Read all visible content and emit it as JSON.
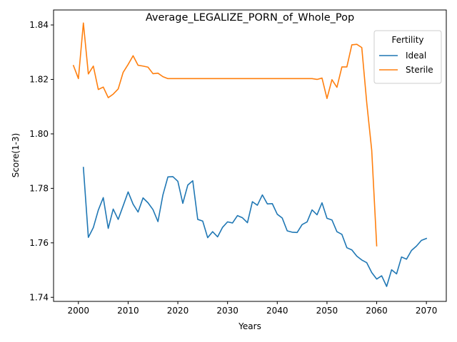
{
  "chart_data": {
    "type": "line",
    "title": "Average_LEGALIZE_PORN_of_Whole_Pop",
    "xlabel": "Years",
    "ylabel": "Score(1-3)",
    "xlim": [
      1995,
      2074
    ],
    "ylim": [
      1.7385,
      1.8455
    ],
    "xticks": [
      2000,
      2010,
      2020,
      2030,
      2040,
      2050,
      2060,
      2070
    ],
    "yticks": [
      1.74,
      1.76,
      1.78,
      1.8,
      1.82,
      1.84
    ],
    "ytick_labels": [
      "1.74",
      "1.76",
      "1.78",
      "1.80",
      "1.82",
      "1.84"
    ],
    "grid": false,
    "legend": {
      "title": "Fertility",
      "position": "top-right"
    },
    "series": [
      {
        "name": "Ideal",
        "color": "#1f77b4",
        "x": [
          2001,
          2002,
          2003,
          2004,
          2005,
          2006,
          2007,
          2008,
          2009,
          2010,
          2011,
          2012,
          2013,
          2014,
          2015,
          2016,
          2017,
          2018,
          2019,
          2020,
          2021,
          2022,
          2023,
          2024,
          2025,
          2026,
          2027,
          2028,
          2029,
          2030,
          2031,
          2032,
          2033,
          2034,
          2035,
          2036,
          2037,
          2038,
          2039,
          2040,
          2041,
          2042,
          2043,
          2044,
          2045,
          2046,
          2047,
          2048,
          2049,
          2050,
          2051,
          2052,
          2053,
          2054,
          2055,
          2056,
          2057,
          2058,
          2059,
          2060,
          2061,
          2062,
          2063,
          2064,
          2065,
          2066,
          2067,
          2068,
          2069,
          2070
        ],
        "y": [
          1.7877,
          1.762,
          1.7656,
          1.772,
          1.7766,
          1.7653,
          1.7724,
          1.7686,
          1.7736,
          1.7787,
          1.7742,
          1.7713,
          1.7765,
          1.7747,
          1.7722,
          1.7678,
          1.7776,
          1.7842,
          1.7843,
          1.7826,
          1.7745,
          1.7812,
          1.7828,
          1.7686,
          1.768,
          1.7619,
          1.7641,
          1.7622,
          1.7657,
          1.7677,
          1.7673,
          1.77,
          1.7692,
          1.7674,
          1.7751,
          1.7738,
          1.7776,
          1.7743,
          1.7744,
          1.7705,
          1.7691,
          1.7644,
          1.7639,
          1.7638,
          1.7667,
          1.7677,
          1.7721,
          1.7703,
          1.7747,
          1.769,
          1.7684,
          1.7641,
          1.7631,
          1.7582,
          1.7574,
          1.7551,
          1.7537,
          1.7527,
          1.7491,
          1.7467,
          1.7479,
          1.744,
          1.7501,
          1.7486,
          1.7548,
          1.754,
          1.7572,
          1.7588,
          1.7609,
          1.7616
        ]
      },
      {
        "name": "Sterile",
        "color": "#ff7f0e",
        "x": [
          1999,
          2000,
          2001,
          2002,
          2003,
          2004,
          2005,
          2006,
          2007,
          2008,
          2009,
          2010,
          2011,
          2012,
          2013,
          2014,
          2015,
          2016,
          2017,
          2018,
          2019,
          2020,
          2021,
          2022,
          2023,
          2024,
          2025,
          2026,
          2027,
          2028,
          2029,
          2030,
          2031,
          2032,
          2033,
          2034,
          2035,
          2036,
          2037,
          2038,
          2039,
          2040,
          2041,
          2042,
          2043,
          2044,
          2045,
          2046,
          2047,
          2048,
          2049,
          2050,
          2051,
          2052,
          2053,
          2054,
          2055,
          2056,
          2057,
          2058,
          2059,
          2060
        ],
        "y": [
          1.8251,
          1.8203,
          1.8407,
          1.822,
          1.8249,
          1.8163,
          1.8172,
          1.8133,
          1.8146,
          1.8165,
          1.8226,
          1.8255,
          1.8287,
          1.8252,
          1.8249,
          1.8245,
          1.8221,
          1.8223,
          1.821,
          1.8203,
          1.8203,
          1.8203,
          1.8203,
          1.8203,
          1.8203,
          1.8203,
          1.8203,
          1.8203,
          1.8203,
          1.8203,
          1.8203,
          1.8203,
          1.8203,
          1.8203,
          1.8203,
          1.8203,
          1.8203,
          1.8203,
          1.8203,
          1.8203,
          1.8203,
          1.8203,
          1.8203,
          1.8203,
          1.8203,
          1.8203,
          1.8203,
          1.8203,
          1.8203,
          1.82,
          1.8205,
          1.813,
          1.8199,
          1.8171,
          1.8246,
          1.8246,
          1.8327,
          1.8329,
          1.8317,
          1.8114,
          1.794,
          1.7589
        ]
      }
    ]
  }
}
